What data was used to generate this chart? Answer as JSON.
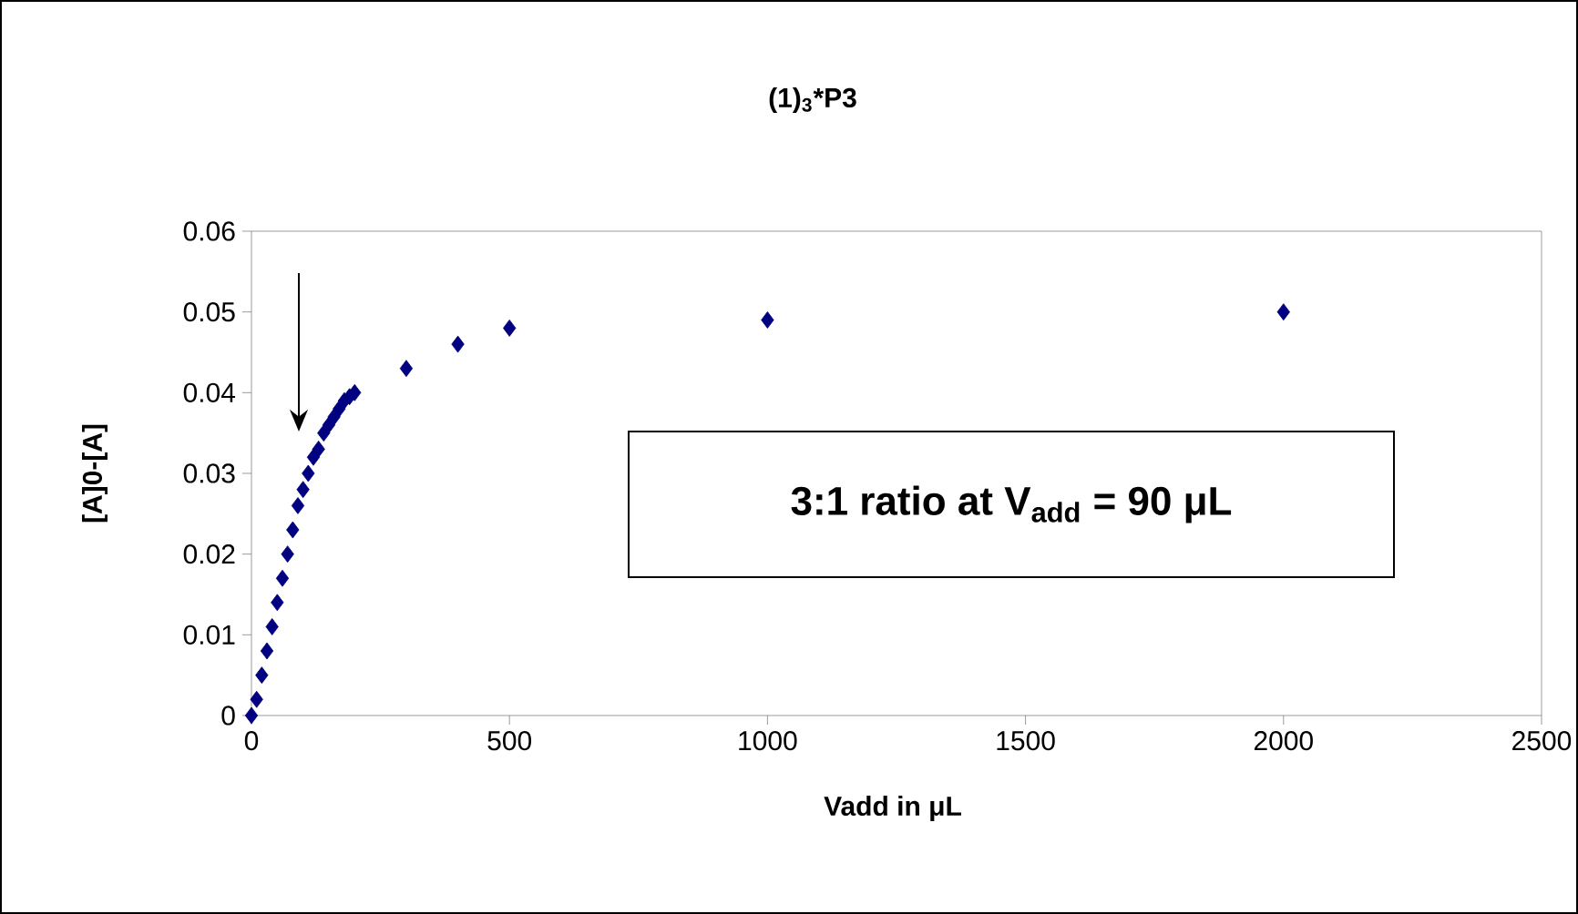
{
  "chart_data": {
    "type": "scatter",
    "title": "(1)$_{3}$*P3",
    "xlabel": "Vadd in μL",
    "ylabel": "[A]0-[A]",
    "annotations": [
      "3:1 ratio at V$_{add}$ = 90 μL"
    ],
    "x": [
      0,
      10,
      20,
      30,
      40,
      50,
      60,
      70,
      80,
      90,
      100,
      110,
      120,
      130,
      140,
      150,
      160,
      170,
      180,
      190,
      200,
      300,
      400,
      500,
      1000,
      2000
    ],
    "series": [
      {
        "color": "#000080",
        "values": [
          0,
          0.002,
          0.005,
          0.008,
          0.011,
          0.014,
          0.017,
          0.02,
          0.023,
          0.026,
          0.028,
          0.03,
          0.032,
          0.033,
          0.035,
          0.036,
          0.037,
          0.038,
          0.039,
          0.0395,
          0.04,
          0.043,
          0.046,
          0.048,
          0.049,
          0.05
        ]
      }
    ],
    "xlim": [
      0,
      2500
    ],
    "ylim": [
      0,
      0.06
    ],
    "xticks": [
      0,
      500,
      1000,
      1500,
      2000,
      2500
    ],
    "yticks": [
      0,
      0.01,
      0.02,
      0.03,
      0.04,
      0.05,
      0.06
    ],
    "marker": "diamond",
    "grid": false
  }
}
